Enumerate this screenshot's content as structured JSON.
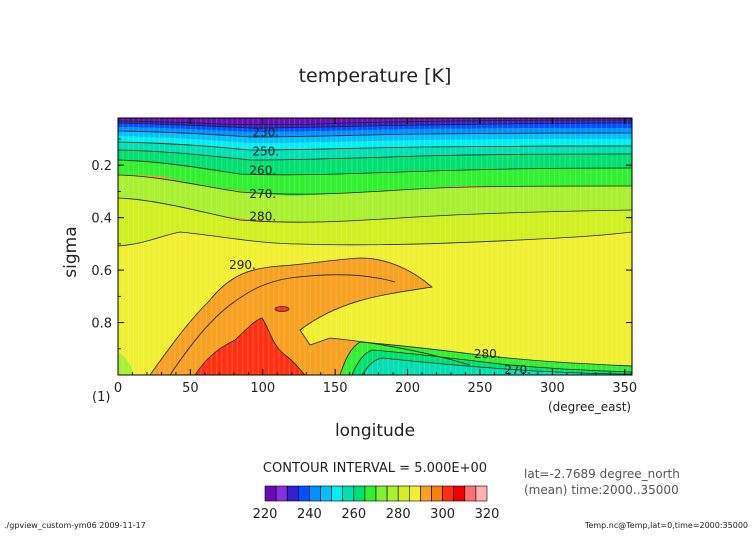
{
  "chart_data": {
    "type": "heatmap",
    "title": "temperature [K]",
    "xlabel": "longitude",
    "xunit": "(degree_east)",
    "ylabel": "sigma",
    "yunit": "(1)",
    "xlim": [
      0,
      355
    ],
    "ylim": [
      0.02,
      1.0
    ],
    "y_inverted": true,
    "x_ticks": [
      0,
      50,
      100,
      150,
      200,
      250,
      300,
      350
    ],
    "y_ticks": [
      0.2,
      0.4,
      0.6,
      0.8
    ],
    "contour_interval_label": "CONTOUR INTERVAL = 5.000E+00",
    "annotations": [
      "lat=-2.7689 degree_north",
      "(mean) time:2000..35000"
    ],
    "contour_labels": [
      {
        "text": "230.",
        "x": 102,
        "y": 0.075
      },
      {
        "text": "250.",
        "x": 102,
        "y": 0.148
      },
      {
        "text": "260.",
        "x": 100,
        "y": 0.22
      },
      {
        "text": "270.",
        "x": 100,
        "y": 0.31
      },
      {
        "text": "280.",
        "x": 100,
        "y": 0.395
      },
      {
        "text": "290.",
        "x": 86,
        "y": 0.58
      },
      {
        "text": "280.",
        "x": 255,
        "y": 0.92
      },
      {
        "text": "270.",
        "x": 276,
        "y": 0.98
      }
    ],
    "colorbar": {
      "levels": [
        220,
        225,
        230,
        235,
        240,
        245,
        250,
        255,
        260,
        265,
        270,
        275,
        280,
        285,
        290,
        295,
        300,
        305,
        310,
        315,
        320
      ],
      "tick_labels": [
        "220",
        "240",
        "260",
        "280",
        "300",
        "320"
      ],
      "colors": [
        "#6a0ab4",
        "#8a2fe0",
        "#3020d0",
        "#0050ff",
        "#0090ff",
        "#00c0ff",
        "#00f0f0",
        "#00e0b0",
        "#00e070",
        "#30f030",
        "#80f030",
        "#a8f030",
        "#d0f020",
        "#f0f030",
        "#f8a020",
        "#f88010",
        "#ff3010",
        "#f00000",
        "#ff7070",
        "#ffb0b0"
      ]
    }
  },
  "footer": {
    "left": "./gpview_custom-ym06  2009-11-17",
    "right": "Temp.nc@Temp,lat=0,time=2000:35000"
  }
}
